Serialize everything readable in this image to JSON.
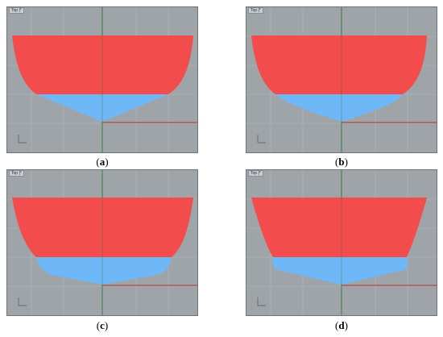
{
  "panels": [
    {
      "id": "a",
      "viewport_label": "Top |*",
      "caption_open": "(",
      "caption_letter": "a",
      "caption_close": ")"
    },
    {
      "id": "b",
      "viewport_label": "Top |*",
      "caption_open": "(",
      "caption_letter": "b",
      "caption_close": ")"
    },
    {
      "id": "c",
      "viewport_label": "Top |*",
      "caption_open": "(",
      "caption_letter": "c",
      "caption_close": ")"
    },
    {
      "id": "d",
      "viewport_label": "Top |*",
      "caption_open": "(",
      "caption_letter": "d",
      "caption_close": ")"
    }
  ],
  "colors": {
    "viewport_bg": "#9ea4a8",
    "grid": "#b3b8bb",
    "upper_section": "#f24c4c",
    "lower_section": "#6fb8f7",
    "axis_x": "#b03030",
    "axis_y": "#2f7a3a"
  }
}
